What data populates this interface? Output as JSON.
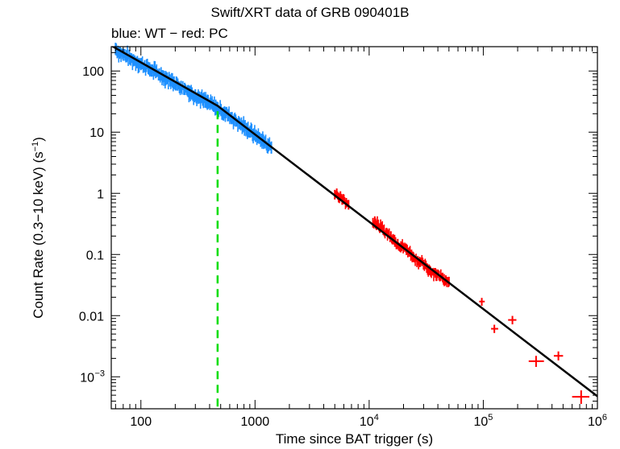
{
  "chart_data": {
    "type": "scatter",
    "title": "Swift/XRT data of GRB 090401B",
    "subtitle": "blue: WT − red: PC",
    "xlabel": "Time since BAT trigger (s)",
    "ylabel": "Count Rate (0.3−10 keV) (s−1)",
    "xscale": "log",
    "yscale": "log",
    "xlim": [
      55,
      1000000
    ],
    "ylim": [
      0.0003,
      250
    ],
    "xticks": [
      {
        "value": 100,
        "label": "100"
      },
      {
        "value": 1000,
        "label": "1000"
      },
      {
        "value": 10000,
        "label": "10",
        "sup": "4"
      },
      {
        "value": 100000,
        "label": "10",
        "sup": "5"
      },
      {
        "value": 1000000,
        "label": "10",
        "sup": "6"
      }
    ],
    "yticks": [
      {
        "value": 100,
        "label": "100"
      },
      {
        "value": 10,
        "label": "10"
      },
      {
        "value": 1,
        "label": "1"
      },
      {
        "value": 0.1,
        "label": "0.1"
      },
      {
        "value": 0.01,
        "label": "0.01"
      },
      {
        "value": 0.001,
        "label": "10",
        "sup": "−3"
      }
    ],
    "colors": {
      "wt": "#1e90ff",
      "pc": "#ff0000",
      "model": "#000000",
      "marker": "#00dd00"
    },
    "vline": {
      "x": 470,
      "label": "dashed green"
    },
    "model": {
      "name": "broken power-law fit",
      "points": [
        [
          55,
          260
        ],
        [
          470,
          27
        ],
        [
          1000000,
          0.00048
        ]
      ]
    },
    "series": [
      {
        "name": "WT",
        "color": "#1e90ff",
        "points": [
          [
            60,
            230
          ],
          [
            65,
            200
          ],
          [
            70,
            185
          ],
          [
            75,
            175
          ],
          [
            80,
            160
          ],
          [
            86,
            150
          ],
          [
            93,
            140
          ],
          [
            100,
            130
          ],
          [
            108,
            120
          ],
          [
            116,
            112
          ],
          [
            125,
            102
          ],
          [
            135,
            96
          ],
          [
            145,
            88
          ],
          [
            156,
            82
          ],
          [
            168,
            76
          ],
          [
            180,
            70
          ],
          [
            195,
            65
          ],
          [
            210,
            60
          ],
          [
            225,
            55
          ],
          [
            242,
            51
          ],
          [
            260,
            47
          ],
          [
            280,
            43
          ],
          [
            300,
            40
          ],
          [
            323,
            37
          ],
          [
            348,
            34
          ],
          [
            375,
            31
          ],
          [
            403,
            29
          ],
          [
            434,
            27
          ],
          [
            467,
            25
          ],
          [
            503,
            23
          ],
          [
            541,
            21
          ],
          [
            583,
            19
          ],
          [
            628,
            17
          ],
          [
            676,
            15.5
          ],
          [
            728,
            14
          ],
          [
            784,
            12.5
          ],
          [
            844,
            11.3
          ],
          [
            909,
            10.2
          ],
          [
            979,
            9.2
          ],
          [
            1054,
            8.3
          ],
          [
            1135,
            7.5
          ],
          [
            1222,
            6.8
          ],
          [
            1316,
            6.1
          ],
          [
            1390,
            5.6
          ]
        ],
        "scatter": 0.26
      },
      {
        "name": "PC",
        "color": "#ff0000",
        "points": [
          [
            5000,
            0.95
          ],
          [
            5200,
            1.0
          ],
          [
            5400,
            0.85
          ],
          [
            5600,
            0.9
          ],
          [
            5800,
            0.78
          ],
          [
            6000,
            0.8
          ],
          [
            6300,
            0.7
          ],
          [
            6600,
            0.65
          ],
          [
            10800,
            0.33
          ],
          [
            11200,
            0.35
          ],
          [
            11600,
            0.3
          ],
          [
            12000,
            0.31
          ],
          [
            12400,
            0.27
          ],
          [
            12800,
            0.28
          ],
          [
            13300,
            0.25
          ],
          [
            15500,
            0.2
          ],
          [
            16200,
            0.18
          ],
          [
            17000,
            0.16
          ],
          [
            17800,
            0.15
          ],
          [
            21500,
            0.12
          ],
          [
            22500,
            0.11
          ],
          [
            23500,
            0.1
          ],
          [
            24500,
            0.09
          ],
          [
            28000,
            0.075
          ],
          [
            30000,
            0.068
          ],
          [
            32000,
            0.06
          ],
          [
            34000,
            0.055
          ],
          [
            38000,
            0.05
          ],
          [
            41000,
            0.045
          ],
          [
            44000,
            0.042
          ],
          [
            47000,
            0.038
          ],
          [
            50000,
            0.036
          ]
        ],
        "scatter": 0.2
      },
      {
        "name": "PC late bins",
        "color": "#ff0000",
        "points": [
          {
            "x": 97000,
            "y": 0.017,
            "xerr": [
              92000,
              103000
            ],
            "yerr": [
              0.0145,
              0.0195
            ]
          },
          {
            "x": 125000,
            "y": 0.0061,
            "xerr": [
              117000,
              135000
            ],
            "yerr": [
              0.0052,
              0.0071
            ]
          },
          {
            "x": 180000,
            "y": 0.0085,
            "xerr": [
              165000,
              195000
            ],
            "yerr": [
              0.0072,
              0.0099
            ]
          },
          {
            "x": 290000,
            "y": 0.0018,
            "xerr": [
              250000,
              340000
            ],
            "yerr": [
              0.00145,
              0.0022
            ]
          },
          {
            "x": 455000,
            "y": 0.0022,
            "xerr": [
              415000,
              500000
            ],
            "yerr": [
              0.00185,
              0.0026
            ]
          },
          {
            "x": 720000,
            "y": 0.00047,
            "xerr": [
              600000,
              850000
            ],
            "yerr": [
              0.00036,
              0.0006
            ]
          }
        ]
      }
    ]
  }
}
